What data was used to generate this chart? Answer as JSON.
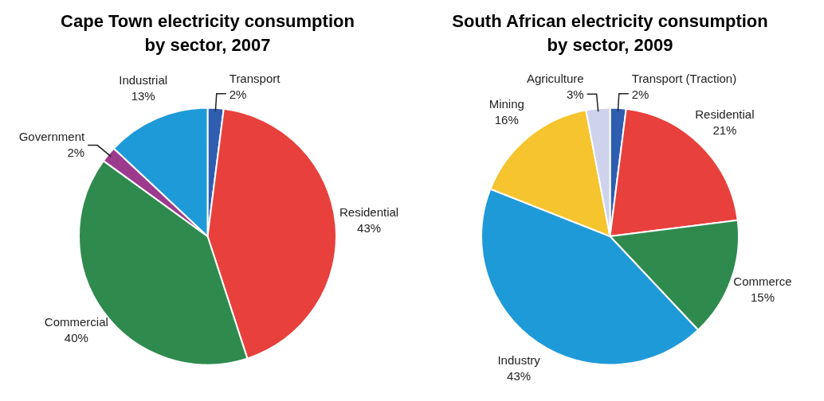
{
  "chart_data": [
    {
      "type": "pie",
      "title": "Cape Town electricity consumption by sector, 2007",
      "categories": [
        "Transport",
        "Residential",
        "Commercial",
        "Government",
        "Industrial"
      ],
      "values": [
        2,
        43,
        40,
        2,
        13
      ],
      "colors": [
        "#2f5eb0",
        "#e8403c",
        "#2f8a4e",
        "#9c3a8e",
        "#1f9ad8"
      ],
      "value_labels": [
        "2%",
        "43%",
        "40%",
        "2%",
        "13%"
      ],
      "legend": false
    },
    {
      "type": "pie",
      "title": "South African electricity consumption by sector, 2009",
      "categories": [
        "Transport (Traction)",
        "Residential",
        "Commerce",
        "Industry",
        "Mining",
        "Agriculture"
      ],
      "values": [
        2,
        21,
        15,
        43,
        16,
        3
      ],
      "colors": [
        "#2f5eb0",
        "#e8403c",
        "#2f8a4e",
        "#1f9ad8",
        "#f6c42e",
        "#cfd2ec"
      ],
      "value_labels": [
        "2%",
        "21%",
        "15%",
        "43%",
        "16%",
        "3%"
      ],
      "legend": false
    }
  ]
}
